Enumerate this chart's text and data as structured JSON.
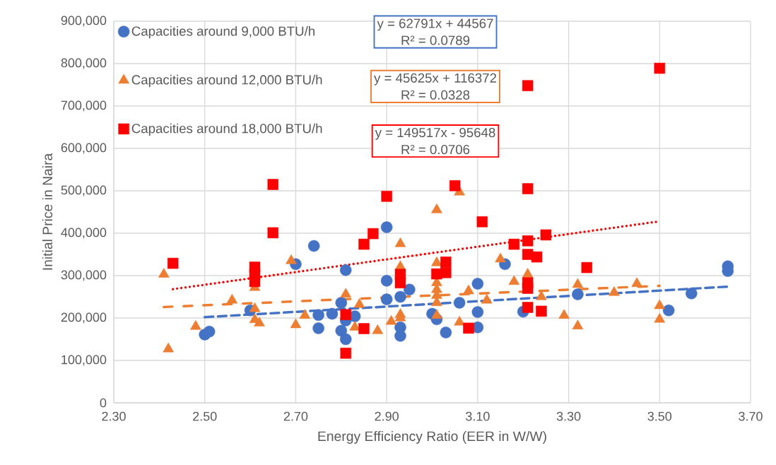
{
  "chart_data": {
    "type": "scatter",
    "xlabel": "Energy Efficiency Ratio (EER in W/W)",
    "ylabel": "Initial Price in Naira",
    "xlim": [
      2.3,
      3.7
    ],
    "ylim": [
      0,
      900000
    ],
    "xticks": [
      {
        "value": 2.3,
        "label": "2.30"
      },
      {
        "value": 2.5,
        "label": "2.50"
      },
      {
        "value": 2.7,
        "label": "2.70"
      },
      {
        "value": 2.9,
        "label": "2.90"
      },
      {
        "value": 3.1,
        "label": "3.10"
      },
      {
        "value": 3.3,
        "label": "3.30"
      },
      {
        "value": 3.5,
        "label": "3.50"
      },
      {
        "value": 3.7,
        "label": "3.70"
      }
    ],
    "yticks": [
      0,
      {
        "value": 100000,
        "label": "100,000"
      },
      {
        "value": 200000,
        "label": "200,000"
      },
      {
        "value": 300000,
        "label": "300,000"
      },
      {
        "value": 400000,
        "label": "400,000"
      },
      {
        "value": 500000,
        "label": "500,000"
      },
      {
        "value": 600000,
        "label": "600,000"
      },
      {
        "value": 700000,
        "label": "700,000"
      },
      {
        "value": 800000,
        "label": "800,000"
      },
      {
        "value": 900000,
        "label": "900,000"
      }
    ],
    "grid": true,
    "legend": "top left",
    "annotations": [
      "y = 62791x + 44567",
      "R² = 0.0789",
      "y = 45625x + 116372",
      "R² = 0.0328",
      "y = 149517x - 95648",
      "R² = 0.0706"
    ],
    "series": [
      {
        "name": "Capacities around 9,000 BTU/h",
        "color": "#4472c4",
        "marker": "circle",
        "x": [
          2.5,
          2.51,
          2.6,
          2.7,
          2.74,
          2.75,
          2.75,
          2.78,
          2.8,
          2.8,
          2.81,
          2.81,
          2.81,
          2.83,
          2.9,
          2.9,
          2.9,
          2.93,
          2.93,
          2.93,
          2.95,
          3.0,
          3.01,
          3.03,
          3.06,
          3.1,
          3.1,
          3.1,
          3.16,
          3.2,
          3.32,
          3.52,
          3.57,
          3.65,
          3.65
        ],
        "values": [
          161000,
          168000,
          218000,
          327000,
          370000,
          207000,
          176000,
          210000,
          236000,
          170000,
          313000,
          194000,
          150000,
          204000,
          414000,
          288000,
          244000,
          250000,
          178000,
          158000,
          267000,
          210000,
          197000,
          166000,
          236000,
          281000,
          214000,
          178000,
          327000,
          215000,
          256000,
          218000,
          258000,
          322000,
          311000
        ]
      },
      {
        "name": "Capacities around 12,000 BTU/h",
        "color": "#ed7d31",
        "marker": "triangle",
        "x": [
          2.41,
          2.42,
          2.48,
          2.56,
          2.61,
          2.61,
          2.61,
          2.62,
          2.69,
          2.7,
          2.72,
          2.81,
          2.84,
          2.83,
          2.88,
          2.91,
          2.93,
          2.93,
          2.93,
          2.93,
          3.01,
          3.01,
          3.01,
          3.01,
          3.01,
          3.01,
          3.01,
          3.06,
          3.06,
          3.08,
          3.12,
          3.15,
          3.18,
          3.21,
          3.24,
          3.29,
          3.32,
          3.32,
          3.4,
          3.45,
          3.5,
          3.5
        ],
        "values": [
          303000,
          127000,
          180000,
          242000,
          272000,
          222000,
          196000,
          188000,
          335000,
          184000,
          206000,
          256000,
          232000,
          178000,
          170000,
          192000,
          375000,
          321000,
          208000,
          200000,
          455000,
          330000,
          283000,
          267000,
          253000,
          236000,
          206000,
          497000,
          190000,
          264000,
          242000,
          339000,
          286000,
          303000,
          250000,
          206000,
          279000,
          181000,
          260000,
          281000,
          229000,
          197000
        ]
      },
      {
        "name": "Capacities around 18,000 BTU/h",
        "color": "#ff0000",
        "marker": "square",
        "x": [
          2.43,
          2.61,
          2.61,
          2.61,
          2.65,
          2.65,
          2.81,
          2.81,
          2.85,
          2.85,
          2.87,
          2.9,
          2.93,
          2.93,
          3.01,
          3.03,
          3.03,
          3.05,
          3.08,
          3.11,
          3.18,
          3.21,
          3.21,
          3.21,
          3.21,
          3.21,
          3.21,
          3.21,
          3.23,
          3.25,
          3.24,
          3.34,
          3.5
        ],
        "values": [
          329000,
          320000,
          303000,
          286000,
          515000,
          401000,
          208000,
          117000,
          374000,
          175000,
          399000,
          487000,
          303000,
          283000,
          304000,
          332000,
          307000,
          512000,
          176000,
          427000,
          374000,
          748000,
          505000,
          382000,
          350000,
          283000,
          270000,
          225000,
          344000,
          396000,
          216000,
          319000,
          789000
        ]
      },
      {
        "type": "line",
        "color": "#4472c4",
        "line_style": "dashed",
        "x": [
          2.5,
          3.65
        ],
        "values": [
          202000,
          274000
        ]
      },
      {
        "type": "line",
        "color": "#ed7d31",
        "line_style": "dashdot",
        "x": [
          2.41,
          3.5
        ],
        "values": [
          226000,
          276000
        ]
      },
      {
        "type": "line",
        "color": "#ff0000",
        "line_style": "dotted",
        "x": [
          2.43,
          3.5
        ],
        "values": [
          268000,
          428000
        ]
      }
    ]
  }
}
